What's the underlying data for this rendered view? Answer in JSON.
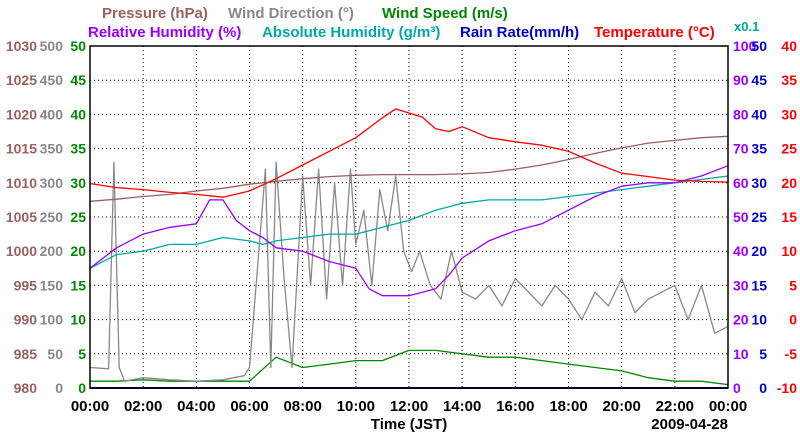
{
  "chart_data": {
    "type": "line",
    "date": "2009-04-28",
    "xlabel": "Time (JST)",
    "x_ticks": [
      "00:00",
      "02:00",
      "04:00",
      "06:00",
      "08:00",
      "10:00",
      "12:00",
      "14:00",
      "16:00",
      "18:00",
      "20:00",
      "22:00",
      "00:00"
    ],
    "xlim_hours": [
      0,
      24
    ],
    "grid": true,
    "legend": [
      {
        "text": "Pressure (hPa)",
        "color": "#9a6060"
      },
      {
        "text": "Wind Direction (°)",
        "color": "#888888"
      },
      {
        "text": "Wind Speed (m/s)",
        "color": "#008800"
      },
      {
        "text": "Relative Humidity (%)",
        "color": "#9900ff"
      },
      {
        "text": "Absolute Humidity (g/m³)",
        "color": "#00a8a8"
      },
      {
        "text": "Rain Rate(mm/h)",
        "color": "#0000cc"
      },
      {
        "text": "Temperature (°C)",
        "color": "#ff0000"
      }
    ],
    "scale_note": "x0.1",
    "axes": {
      "pressure": {
        "color": "#9a6060",
        "ylim": [
          980,
          1030
        ],
        "ticks": [
          "1030",
          "1025",
          "1020",
          "1015",
          "1010",
          "1005",
          "1000",
          "995",
          "990",
          "985",
          "980"
        ]
      },
      "wind_direction": {
        "color": "#888888",
        "ylim": [
          0,
          500
        ],
        "ticks": [
          "500",
          "450",
          "400",
          "350",
          "300",
          "250",
          "200",
          "150",
          "100",
          "50",
          "0"
        ]
      },
      "wind_speed": {
        "color": "#008800",
        "ylim": [
          0,
          50
        ],
        "ticks": [
          "50",
          "45",
          "40",
          "35",
          "30",
          "25",
          "20",
          "15",
          "10",
          "5",
          "0"
        ]
      },
      "relative_humidity": {
        "color": "#9900ff",
        "ylim": [
          0,
          100
        ],
        "ticks": [
          "100",
          "90",
          "80",
          "70",
          "60",
          "50",
          "40",
          "30",
          "20",
          "10",
          "0"
        ]
      },
      "rain_rate": {
        "color": "#0000cc",
        "ylim": [
          0,
          50
        ],
        "ticks": [
          "50",
          "45",
          "40",
          "35",
          "30",
          "25",
          "20",
          "15",
          "10",
          "5",
          "0"
        ]
      },
      "temperature": {
        "color": "#ff0000",
        "ylim": [
          -10,
          40
        ],
        "ticks": [
          "40",
          "35",
          "30",
          "25",
          "20",
          "15",
          "10",
          "5",
          "0",
          "-5",
          "-10"
        ]
      }
    },
    "series": [
      {
        "name": "Pressure",
        "axis": "pressure",
        "color": "#9a6060",
        "x": [
          0,
          1,
          2,
          3,
          4,
          5,
          6,
          7,
          8,
          9,
          10,
          11,
          12,
          13,
          14,
          15,
          16,
          17,
          18,
          19,
          20,
          21,
          22,
          23,
          24
        ],
        "y": [
          1007.3,
          1007.6,
          1008.0,
          1008.3,
          1008.8,
          1009.2,
          1009.8,
          1010.2,
          1010.6,
          1010.9,
          1011.1,
          1011.2,
          1011.2,
          1011.2,
          1011.3,
          1011.5,
          1012.0,
          1012.6,
          1013.4,
          1014.3,
          1015.1,
          1015.8,
          1016.2,
          1016.6,
          1016.8
        ]
      },
      {
        "name": "Temperature",
        "axis": "temperature",
        "color": "#ff0000",
        "x": [
          0,
          1,
          2,
          3,
          4,
          5,
          6,
          7,
          8,
          9,
          10,
          11,
          11.5,
          12,
          12.5,
          13,
          13.5,
          14,
          15,
          16,
          17,
          18,
          19,
          20,
          21,
          22,
          23,
          24
        ],
        "y": [
          19.9,
          19.3,
          19.0,
          18.6,
          18.3,
          17.9,
          18.8,
          20.6,
          22.6,
          24.6,
          26.6,
          29.5,
          30.8,
          30.2,
          29.6,
          27.9,
          27.5,
          28.2,
          26.6,
          26.0,
          25.5,
          24.6,
          22.9,
          21.4,
          20.9,
          20.4,
          20.2,
          20.1
        ]
      },
      {
        "name": "Relative Humidity",
        "axis": "relative_humidity",
        "color": "#9900ff",
        "x": [
          0,
          0.5,
          1,
          2,
          3,
          4,
          4.5,
          5,
          5.5,
          6,
          6.5,
          7,
          8,
          9,
          10,
          10.5,
          11,
          12,
          13,
          13.5,
          14,
          15,
          16,
          17,
          18,
          19,
          20,
          21,
          22,
          23,
          24
        ],
        "y": [
          35,
          38,
          41,
          45,
          47,
          48,
          55,
          55,
          49,
          46,
          44,
          41,
          40,
          37,
          35,
          29,
          27,
          27,
          29,
          33,
          38,
          43,
          46,
          48,
          52,
          56,
          59,
          60,
          60,
          62,
          65
        ]
      },
      {
        "name": "Absolute Humidity",
        "axis": "relative_humidity",
        "color": "#00a8a8",
        "x": [
          0,
          1,
          2,
          3,
          4,
          5,
          6,
          6.5,
          7,
          8,
          9,
          10,
          11,
          12,
          13,
          14,
          15,
          16,
          17,
          18,
          19,
          20,
          21,
          22,
          23,
          24
        ],
        "y": [
          35,
          39,
          40,
          42,
          42,
          44,
          43,
          42,
          43,
          44,
          45,
          45,
          47,
          49,
          52,
          54,
          55,
          55,
          55,
          56,
          57,
          58,
          59,
          60,
          61,
          62
        ]
      },
      {
        "name": "Wind Direction",
        "axis": "wind_direction",
        "color": "#888888",
        "x": [
          0,
          0.7,
          0.9,
          1.1,
          1.3,
          2,
          3,
          4,
          5,
          5.8,
          6,
          6.6,
          6.8,
          7,
          7.3,
          7.6,
          8,
          8.3,
          8.6,
          8.9,
          9.2,
          9.5,
          9.8,
          10,
          10.3,
          10.6,
          10.9,
          11.2,
          11.5,
          11.8,
          12.1,
          12.4,
          12.8,
          13.2,
          13.6,
          14,
          14.5,
          15,
          15.5,
          16,
          16.5,
          17,
          17.5,
          18,
          18.5,
          19,
          19.5,
          20,
          20.5,
          21,
          21.5,
          22,
          22.5,
          23,
          23.5,
          24
        ],
        "y": [
          30,
          28,
          330,
          30,
          10,
          15,
          12,
          10,
          12,
          18,
          30,
          320,
          30,
          330,
          160,
          30,
          310,
          150,
          320,
          130,
          300,
          150,
          320,
          210,
          260,
          150,
          290,
          230,
          310,
          200,
          170,
          200,
          150,
          130,
          200,
          140,
          130,
          150,
          120,
          160,
          140,
          120,
          150,
          130,
          100,
          140,
          120,
          160,
          110,
          130,
          140,
          150,
          100,
          150,
          80,
          90
        ]
      },
      {
        "name": "Wind Speed",
        "axis": "wind_speed",
        "color": "#008800",
        "x": [
          0,
          1,
          2,
          3,
          4,
          5,
          6,
          7,
          8,
          9,
          10,
          11,
          12,
          13,
          14,
          15,
          16,
          17,
          18,
          19,
          20,
          21,
          22,
          23,
          24
        ],
        "y": [
          1.0,
          1.0,
          1.2,
          1.0,
          1.0,
          1.0,
          1.0,
          4.5,
          3.0,
          3.5,
          4.0,
          4.0,
          5.5,
          5.5,
          5.0,
          4.5,
          4.5,
          4.0,
          3.5,
          3.0,
          2.5,
          1.5,
          1.0,
          1.0,
          0.5
        ]
      },
      {
        "name": "Rain Rate",
        "axis": "rain_rate",
        "color": "#0000cc",
        "x": [
          0,
          24
        ],
        "y": [
          0,
          0
        ]
      }
    ]
  }
}
